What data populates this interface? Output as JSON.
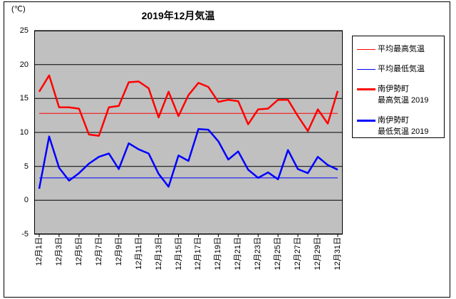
{
  "chart": {
    "y_unit_label": "(℃)",
    "colors": {
      "plot_background": "#c0c0c0",
      "grid": "#000000",
      "max_line": "#ff0000",
      "min_line": "#0000ff"
    },
    "legend": {
      "items": [
        {
          "line1": "平均最高気温",
          "line2": ""
        },
        {
          "line1": "平均最低気温",
          "line2": ""
        },
        {
          "line1": "南伊勢町",
          "line2": "最高気温 2019"
        },
        {
          "line1": "南伊勢町",
          "line2": "最低気温 2019"
        }
      ]
    }
  },
  "chart_data": {
    "type": "line",
    "title": "2019年12月気温",
    "xlabel": "",
    "ylabel": "(℃)",
    "ylim": [
      -5,
      25
    ],
    "yticks": [
      25,
      20,
      15,
      10,
      5,
      0,
      -5
    ],
    "grid": true,
    "plot_bg": "#c0c0c0",
    "legend_position": "right",
    "days": [
      1,
      2,
      3,
      4,
      5,
      6,
      7,
      8,
      9,
      10,
      11,
      12,
      13,
      14,
      15,
      16,
      17,
      18,
      19,
      20,
      21,
      22,
      23,
      24,
      25,
      26,
      27,
      28,
      29,
      30,
      31
    ],
    "xticklabels": [
      "12月1日",
      "12月3日",
      "12月5日",
      "12月7日",
      "12月9日",
      "12月11日",
      "12月13日",
      "12月15日",
      "12月17日",
      "12月19日",
      "12月21日",
      "12月23日",
      "12月25日",
      "12月27日",
      "12月29日",
      "12月31日"
    ],
    "series": [
      {
        "name": "平均最高気温",
        "color": "#ff0000",
        "thickness": 1,
        "type": "constant",
        "value": 12.8
      },
      {
        "name": "平均最低気温",
        "color": "#0000ff",
        "thickness": 1,
        "type": "constant",
        "value": 3.3
      },
      {
        "name": "南伊勢町 最高気温 2019",
        "color": "#ff0000",
        "thickness": 2.5,
        "values": [
          16.0,
          18.4,
          13.7,
          13.7,
          13.5,
          9.7,
          9.5,
          13.7,
          13.9,
          17.4,
          17.5,
          16.5,
          12.2,
          16.0,
          12.4,
          15.5,
          17.3,
          16.7,
          14.5,
          14.8,
          14.6,
          11.2,
          13.4,
          13.5,
          14.8,
          14.8,
          12.4,
          10.2,
          13.4,
          11.3,
          16.1
        ]
      },
      {
        "name": "南伊勢町 最低気温 2019",
        "color": "#0000ff",
        "thickness": 2.5,
        "values": [
          1.7,
          9.4,
          4.8,
          2.9,
          4.0,
          5.4,
          6.4,
          6.9,
          4.6,
          8.4,
          7.5,
          6.9,
          3.9,
          2.0,
          6.6,
          5.8,
          10.5,
          10.4,
          8.7,
          6.0,
          7.2,
          4.5,
          3.3,
          4.1,
          3.1,
          7.4,
          4.6,
          4.0,
          6.4,
          5.2,
          4.5
        ]
      }
    ]
  }
}
